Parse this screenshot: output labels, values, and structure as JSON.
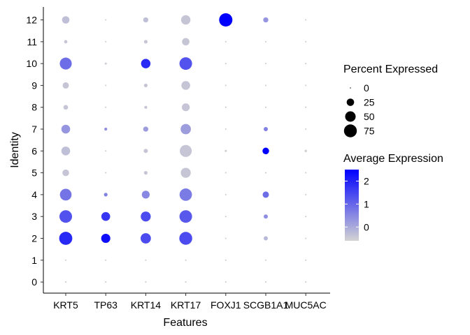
{
  "chart_data": {
    "type": "scatter",
    "subtype": "dot-plot",
    "xlabel": "Features",
    "ylabel": "Identity",
    "features": [
      "KRT5",
      "TP63",
      "KRT14",
      "KRT17",
      "FOXJ1",
      "SCGB1A1",
      "MUC5AC"
    ],
    "identities": [
      "0",
      "1",
      "2",
      "3",
      "4",
      "5",
      "6",
      "7",
      "8",
      "9",
      "10",
      "11",
      "12"
    ],
    "size_legend": {
      "title": "Percent Expressed",
      "breaks": [
        0,
        25,
        50,
        75
      ],
      "labels": [
        "0",
        "25",
        "50",
        "75"
      ]
    },
    "color_legend": {
      "title": "Average Expression",
      "breaks": [
        0,
        1,
        2
      ],
      "labels": [
        "0",
        "1",
        "2"
      ],
      "range": [
        -0.6,
        2.5
      ],
      "low_color": "#d3d3d3",
      "high_color": "#0000ff"
    },
    "points": [
      {
        "identity": "12",
        "feature": "KRT5",
        "pct": 25,
        "avg": -0.3
      },
      {
        "identity": "12",
        "feature": "TP63",
        "pct": 1,
        "avg": -0.5
      },
      {
        "identity": "12",
        "feature": "KRT14",
        "pct": 12,
        "avg": -0.3
      },
      {
        "identity": "12",
        "feature": "KRT17",
        "pct": 40,
        "avg": -0.4
      },
      {
        "identity": "12",
        "feature": "FOXJ1",
        "pct": 80,
        "avg": 2.5
      },
      {
        "identity": "12",
        "feature": "SCGB1A1",
        "pct": 12,
        "avg": 0.3
      },
      {
        "identity": "12",
        "feature": "MUC5AC",
        "pct": 1,
        "avg": -0.5
      },
      {
        "identity": "11",
        "feature": "KRT5",
        "pct": 5,
        "avg": -0.4
      },
      {
        "identity": "11",
        "feature": "TP63",
        "pct": 1,
        "avg": -0.5
      },
      {
        "identity": "11",
        "feature": "KRT14",
        "pct": 6,
        "avg": -0.4
      },
      {
        "identity": "11",
        "feature": "KRT17",
        "pct": 25,
        "avg": -0.4
      },
      {
        "identity": "11",
        "feature": "FOXJ1",
        "pct": 1,
        "avg": -0.5
      },
      {
        "identity": "11",
        "feature": "SCGB1A1",
        "pct": 1,
        "avg": -0.5
      },
      {
        "identity": "11",
        "feature": "MUC5AC",
        "pct": 1,
        "avg": -0.5
      },
      {
        "identity": "10",
        "feature": "KRT5",
        "pct": 65,
        "avg": 0.9
      },
      {
        "identity": "10",
        "feature": "TP63",
        "pct": 2,
        "avg": -0.5
      },
      {
        "identity": "10",
        "feature": "KRT14",
        "pct": 40,
        "avg": 1.9
      },
      {
        "identity": "10",
        "feature": "KRT17",
        "pct": 72,
        "avg": 1.3
      },
      {
        "identity": "10",
        "feature": "FOXJ1",
        "pct": 1,
        "avg": -0.5
      },
      {
        "identity": "10",
        "feature": "SCGB1A1",
        "pct": 1,
        "avg": -0.5
      },
      {
        "identity": "10",
        "feature": "MUC5AC",
        "pct": 1,
        "avg": -0.5
      },
      {
        "identity": "9",
        "feature": "KRT5",
        "pct": 18,
        "avg": -0.4
      },
      {
        "identity": "9",
        "feature": "TP63",
        "pct": 1,
        "avg": -0.5
      },
      {
        "identity": "9",
        "feature": "KRT14",
        "pct": 6,
        "avg": -0.4
      },
      {
        "identity": "9",
        "feature": "KRT17",
        "pct": 35,
        "avg": -0.4
      },
      {
        "identity": "9",
        "feature": "FOXJ1",
        "pct": 1,
        "avg": -0.5
      },
      {
        "identity": "9",
        "feature": "SCGB1A1",
        "pct": 1,
        "avg": -0.5
      },
      {
        "identity": "9",
        "feature": "MUC5AC",
        "pct": 1,
        "avg": -0.5
      },
      {
        "identity": "8",
        "feature": "KRT5",
        "pct": 10,
        "avg": -0.4
      },
      {
        "identity": "8",
        "feature": "TP63",
        "pct": 1,
        "avg": -0.5
      },
      {
        "identity": "8",
        "feature": "KRT14",
        "pct": 4,
        "avg": -0.4
      },
      {
        "identity": "8",
        "feature": "KRT17",
        "pct": 28,
        "avg": -0.4
      },
      {
        "identity": "8",
        "feature": "FOXJ1",
        "pct": 1,
        "avg": -0.5
      },
      {
        "identity": "8",
        "feature": "SCGB1A1",
        "pct": 1,
        "avg": -0.5
      },
      {
        "identity": "8",
        "feature": "MUC5AC",
        "pct": 1,
        "avg": -0.5
      },
      {
        "identity": "7",
        "feature": "KRT5",
        "pct": 35,
        "avg": 0.3
      },
      {
        "identity": "7",
        "feature": "TP63",
        "pct": 4,
        "avg": 0.4
      },
      {
        "identity": "7",
        "feature": "KRT14",
        "pct": 12,
        "avg": 0.2
      },
      {
        "identity": "7",
        "feature": "KRT17",
        "pct": 48,
        "avg": 0.2
      },
      {
        "identity": "7",
        "feature": "FOXJ1",
        "pct": 1,
        "avg": -0.5
      },
      {
        "identity": "7",
        "feature": "SCGB1A1",
        "pct": 8,
        "avg": 0.6
      },
      {
        "identity": "7",
        "feature": "MUC5AC",
        "pct": 1,
        "avg": -0.5
      },
      {
        "identity": "6",
        "feature": "KRT5",
        "pct": 35,
        "avg": -0.3
      },
      {
        "identity": "6",
        "feature": "TP63",
        "pct": 1,
        "avg": -0.5
      },
      {
        "identity": "6",
        "feature": "KRT14",
        "pct": 8,
        "avg": -0.4
      },
      {
        "identity": "6",
        "feature": "KRT17",
        "pct": 65,
        "avg": -0.4
      },
      {
        "identity": "6",
        "feature": "FOXJ1",
        "pct": 2,
        "avg": -0.5
      },
      {
        "identity": "6",
        "feature": "SCGB1A1",
        "pct": 20,
        "avg": 2.5
      },
      {
        "identity": "6",
        "feature": "MUC5AC",
        "pct": 3,
        "avg": -0.6
      },
      {
        "identity": "5",
        "feature": "KRT5",
        "pct": 20,
        "avg": -0.4
      },
      {
        "identity": "5",
        "feature": "TP63",
        "pct": 1,
        "avg": -0.5
      },
      {
        "identity": "5",
        "feature": "KRT14",
        "pct": 6,
        "avg": -0.4
      },
      {
        "identity": "5",
        "feature": "KRT17",
        "pct": 45,
        "avg": -0.4
      },
      {
        "identity": "5",
        "feature": "FOXJ1",
        "pct": 1,
        "avg": -0.5
      },
      {
        "identity": "5",
        "feature": "SCGB1A1",
        "pct": 1,
        "avg": -0.5
      },
      {
        "identity": "5",
        "feature": "MUC5AC",
        "pct": 1,
        "avg": -0.5
      },
      {
        "identity": "4",
        "feature": "KRT5",
        "pct": 62,
        "avg": 0.8
      },
      {
        "identity": "4",
        "feature": "TP63",
        "pct": 6,
        "avg": 0.6
      },
      {
        "identity": "4",
        "feature": "KRT14",
        "pct": 28,
        "avg": 0.5
      },
      {
        "identity": "4",
        "feature": "KRT17",
        "pct": 70,
        "avg": 0.7
      },
      {
        "identity": "4",
        "feature": "FOXJ1",
        "pct": 1,
        "avg": -0.5
      },
      {
        "identity": "4",
        "feature": "SCGB1A1",
        "pct": 18,
        "avg": 0.9
      },
      {
        "identity": "4",
        "feature": "MUC5AC",
        "pct": 1,
        "avg": -0.5
      },
      {
        "identity": "3",
        "feature": "KRT5",
        "pct": 72,
        "avg": 1.3
      },
      {
        "identity": "3",
        "feature": "TP63",
        "pct": 35,
        "avg": 1.7
      },
      {
        "identity": "3",
        "feature": "KRT14",
        "pct": 45,
        "avg": 1.4
      },
      {
        "identity": "3",
        "feature": "KRT17",
        "pct": 72,
        "avg": 1.2
      },
      {
        "identity": "3",
        "feature": "FOXJ1",
        "pct": 1,
        "avg": -0.5
      },
      {
        "identity": "3",
        "feature": "SCGB1A1",
        "pct": 8,
        "avg": 0.4
      },
      {
        "identity": "3",
        "feature": "MUC5AC",
        "pct": 1,
        "avg": -0.5
      },
      {
        "identity": "2",
        "feature": "KRT5",
        "pct": 78,
        "avg": 1.9
      },
      {
        "identity": "2",
        "feature": "TP63",
        "pct": 38,
        "avg": 2.3
      },
      {
        "identity": "2",
        "feature": "KRT14",
        "pct": 48,
        "avg": 1.4
      },
      {
        "identity": "2",
        "feature": "KRT17",
        "pct": 76,
        "avg": 1.4
      },
      {
        "identity": "2",
        "feature": "FOXJ1",
        "pct": 1,
        "avg": -0.5
      },
      {
        "identity": "2",
        "feature": "SCGB1A1",
        "pct": 8,
        "avg": -0.2
      },
      {
        "identity": "2",
        "feature": "MUC5AC",
        "pct": 1,
        "avg": -0.5
      },
      {
        "identity": "1",
        "feature": "KRT5",
        "pct": 1,
        "avg": -0.5
      },
      {
        "identity": "1",
        "feature": "TP63",
        "pct": 1,
        "avg": -0.5
      },
      {
        "identity": "1",
        "feature": "KRT14",
        "pct": 1,
        "avg": -0.5
      },
      {
        "identity": "1",
        "feature": "KRT17",
        "pct": 1,
        "avg": -0.5
      },
      {
        "identity": "1",
        "feature": "FOXJ1",
        "pct": 1,
        "avg": -0.5
      },
      {
        "identity": "1",
        "feature": "SCGB1A1",
        "pct": 1,
        "avg": -0.5
      },
      {
        "identity": "1",
        "feature": "MUC5AC",
        "pct": 1,
        "avg": -0.5
      },
      {
        "identity": "0",
        "feature": "KRT5",
        "pct": 1,
        "avg": -0.5
      },
      {
        "identity": "0",
        "feature": "TP63",
        "pct": 1,
        "avg": -0.5
      },
      {
        "identity": "0",
        "feature": "KRT14",
        "pct": 1,
        "avg": -0.5
      },
      {
        "identity": "0",
        "feature": "KRT17",
        "pct": 1,
        "avg": -0.5
      },
      {
        "identity": "0",
        "feature": "FOXJ1",
        "pct": 1,
        "avg": -0.5
      },
      {
        "identity": "0",
        "feature": "SCGB1A1",
        "pct": 1,
        "avg": -0.5
      },
      {
        "identity": "0",
        "feature": "MUC5AC",
        "pct": 1,
        "avg": -0.5
      }
    ]
  }
}
